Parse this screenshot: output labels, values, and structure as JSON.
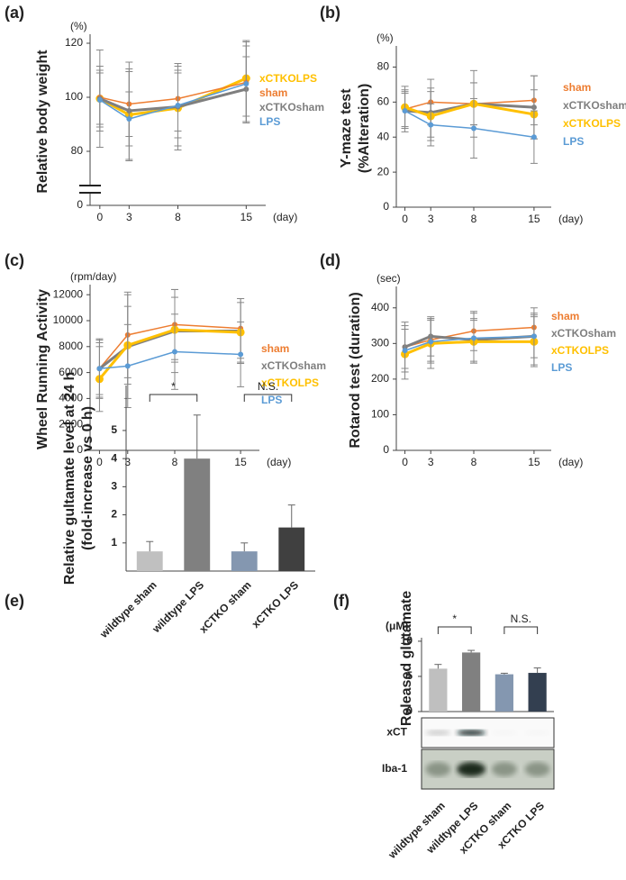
{
  "chart_data": [
    {
      "type": "line",
      "panel": "(a)",
      "y_label": "Relative body weight",
      "y_unit": "(%)",
      "x_unit": "(day)",
      "x": [
        0,
        3,
        8,
        15
      ],
      "xlim": [
        -1,
        17
      ],
      "xticks": [
        0,
        3,
        8,
        15
      ],
      "ylim": [
        72,
        122
      ],
      "yticks": [
        80,
        100,
        120
      ],
      "break_tick": 0,
      "series": [
        {
          "name": "xCTKOLPS",
          "color": "#ffc000",
          "values": [
            99.5,
            93.5,
            96,
            107
          ],
          "errors": [
            18,
            17,
            14,
            14
          ]
        },
        {
          "name": "sham",
          "color": "#ed7d31",
          "values": [
            100,
            97.5,
            99.5,
            105.5
          ],
          "errors": [
            10,
            12,
            12,
            15
          ]
        },
        {
          "name": "xCTKOsham",
          "color": "#7f7f7f",
          "values": [
            99.5,
            95,
            96.5,
            103
          ],
          "errors": [
            12,
            18,
            16,
            12
          ]
        },
        {
          "name": "LPS",
          "color": "#5b9bd5",
          "values": [
            99,
            92,
            97,
            105
          ],
          "errors": [
            10,
            10,
            12,
            14
          ]
        }
      ]
    },
    {
      "type": "line",
      "panel": "(b)",
      "y_label": [
        "Y-maze test",
        "(%Alteration)"
      ],
      "y_unit": "(%)",
      "x_unit": "(day)",
      "x": [
        0,
        3,
        8,
        15
      ],
      "xlim": [
        -1,
        17
      ],
      "xticks": [
        0,
        3,
        8,
        15
      ],
      "ylim": [
        0,
        90
      ],
      "yticks": [
        0,
        20,
        40,
        60,
        80
      ],
      "series": [
        {
          "name": "sham",
          "color": "#ed7d31",
          "values": [
            56,
            60,
            59,
            61
          ],
          "errors": [
            10,
            13,
            12,
            14
          ]
        },
        {
          "name": "xCTKOsham",
          "color": "#7f7f7f",
          "values": [
            55,
            54,
            59,
            57
          ],
          "errors": [
            12,
            14,
            19,
            18
          ]
        },
        {
          "name": "xCTKOLPS",
          "color": "#ffc000",
          "values": [
            57,
            52,
            59,
            53
          ],
          "errors": [
            12,
            14,
            12,
            14
          ]
        },
        {
          "name": "LPS",
          "color": "#5b9bd5",
          "values": [
            55,
            47,
            45,
            40
          ],
          "errors": [
            10,
            12,
            17,
            15
          ]
        }
      ]
    },
    {
      "type": "line",
      "panel": "(c)",
      "y_label": "Wheel Running Activity",
      "y_unit": "(rpm/day)",
      "x_unit": "(day)",
      "x": [
        0,
        3,
        8,
        15
      ],
      "xlim": [
        -1,
        17
      ],
      "xticks": [
        0,
        3,
        8,
        15
      ],
      "ylim": [
        0,
        12500
      ],
      "yticks": [
        0,
        2000,
        4000,
        6000,
        8000,
        10000,
        12000
      ],
      "series": [
        {
          "name": "sham",
          "color": "#ed7d31",
          "values": [
            6300,
            8900,
            9700,
            9400
          ],
          "errors": [
            2200,
            3300,
            2700,
            2300
          ]
        },
        {
          "name": "xCTKOsham",
          "color": "#7f7f7f",
          "values": [
            6300,
            8000,
            9200,
            9200
          ],
          "errors": [
            2000,
            4000,
            3200,
            2500
          ]
        },
        {
          "name": "xCTKOLPS",
          "color": "#ffc000",
          "values": [
            5500,
            8100,
            9300,
            9100
          ],
          "errors": [
            2500,
            3000,
            2500,
            2300
          ]
        },
        {
          "name": "LPS",
          "color": "#5b9bd5",
          "values": [
            6300,
            6500,
            7600,
            7400
          ],
          "errors": [
            2300,
            3200,
            2900,
            2500
          ]
        }
      ]
    },
    {
      "type": "line",
      "panel": "(d)",
      "y_label": "Rotarod test (duration)",
      "y_unit": "(sec)",
      "x_unit": "(day)",
      "x": [
        0,
        3,
        8,
        15
      ],
      "xlim": [
        -1,
        17
      ],
      "xticks": [
        0,
        3,
        8,
        15
      ],
      "ylim": [
        0,
        450
      ],
      "yticks": [
        0,
        100,
        200,
        300,
        400
      ],
      "series": [
        {
          "name": "sham",
          "color": "#ed7d31",
          "values": [
            290,
            310,
            335,
            345
          ],
          "errors": [
            60,
            60,
            55,
            40
          ]
        },
        {
          "name": "xCTKOsham",
          "color": "#7f7f7f",
          "values": [
            290,
            320,
            310,
            320
          ],
          "errors": [
            70,
            55,
            60,
            60
          ]
        },
        {
          "name": "xCTKOLPS",
          "color": "#ffc000",
          "values": [
            270,
            300,
            305,
            305
          ],
          "errors": [
            70,
            70,
            60,
            70
          ]
        },
        {
          "name": "LPS",
          "color": "#5b9bd5",
          "values": [
            280,
            305,
            315,
            320
          ],
          "errors": [
            60,
            60,
            70,
            80
          ]
        }
      ]
    },
    {
      "type": "bar",
      "panel": "(e)",
      "y_label": [
        "Relative gultamate level at 24 h",
        "(fold-increase vs 0 h)"
      ],
      "categories": [
        "wildtype sham",
        "wildtype LPS",
        "xCTKO sham",
        "xCTKO LPS"
      ],
      "values": [
        0.7,
        4.0,
        0.7,
        1.55
      ],
      "errors": [
        0.35,
        1.55,
        0.3,
        0.8
      ],
      "colors": [
        "#c0c0c0",
        "#808080",
        "#8497b0",
        "#404040"
      ],
      "ylim": [
        0,
        6.6
      ],
      "yticks": [
        1,
        2,
        3,
        4,
        5
      ],
      "annotations": [
        "*",
        "N.S."
      ]
    },
    {
      "type": "bar",
      "panel": "(f)",
      "y_label": "Released glutamate",
      "y_unit": "(μM)",
      "categories": [
        "wildtype sham",
        "wildtype LPS",
        "xCTKO sham",
        "xCTKO LPS"
      ],
      "values": [
        6.1,
        8.4,
        5.3,
        5.5
      ],
      "errors": [
        0.6,
        0.3,
        0.15,
        0.7
      ],
      "colors": [
        "#bfbfbf",
        "#808080",
        "#8497b0",
        "#333f50"
      ],
      "ylim": [
        0,
        10.5
      ],
      "yticks": [
        0,
        5,
        10
      ],
      "annotations": [
        "*",
        "N.S."
      ],
      "blot_labels": [
        "xCT",
        "Iba-1"
      ]
    }
  ]
}
